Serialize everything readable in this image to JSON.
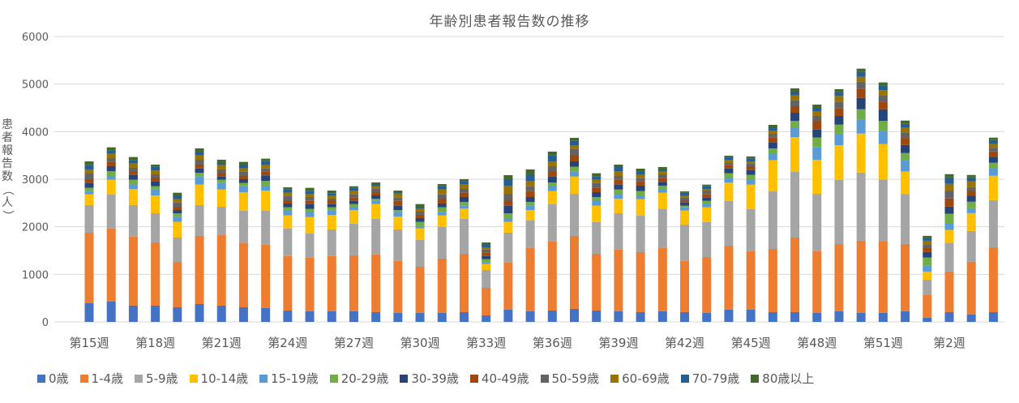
{
  "chart_data": {
    "type": "bar",
    "stacked": true,
    "title": "年齢別患者報告数の推移",
    "xlabel": "",
    "ylabel": "患者報告数（人）",
    "ylim": [
      0,
      6000
    ],
    "yticks": [
      0,
      1000,
      2000,
      3000,
      4000,
      5000,
      6000
    ],
    "grid": true,
    "legend_position": "bottom",
    "categories": [
      "第15週",
      "第16週",
      "第17週",
      "第18週",
      "第19週",
      "第20週",
      "第21週",
      "第22週",
      "第23週",
      "第24週",
      "第25週",
      "第26週",
      "第27週",
      "第28週",
      "第29週",
      "第30週",
      "第31週",
      "第32週",
      "第33週",
      "第34週",
      "第35週",
      "第36週",
      "第37週",
      "第38週",
      "第39週",
      "第40週",
      "第41週",
      "第42週",
      "第43週",
      "第44週",
      "第45週",
      "第46週",
      "第47週",
      "第48週",
      "第49週",
      "第50週",
      "第51週",
      "第52週",
      "第1週",
      "第2週",
      "第3週",
      "第4週"
    ],
    "shown_tick_labels": [
      "第15週",
      "第18週",
      "第21週",
      "第24週",
      "第27週",
      "第30週",
      "第33週",
      "第36週",
      "第39週",
      "第42週",
      "第45週",
      "第48週",
      "第51週",
      "第2週"
    ],
    "series": [
      {
        "name": "0歳",
        "color": "#4472C4",
        "values": [
          398,
          432,
          341,
          341,
          307,
          375,
          341,
          307,
          295,
          239,
          227,
          227,
          227,
          205,
          193,
          193,
          193,
          205,
          136,
          261,
          227,
          239,
          273,
          239,
          227,
          205,
          227,
          205,
          193,
          261,
          261,
          205,
          205,
          193,
          227,
          193,
          193,
          227,
          91,
          205,
          159,
          205
        ]
      },
      {
        "name": "1-4歳",
        "color": "#ED7D31",
        "values": [
          1477,
          1534,
          1454,
          1329,
          954,
          1432,
          1489,
          1352,
          1330,
          1147,
          1125,
          1159,
          1171,
          1215,
          1091,
          966,
          1137,
          1227,
          580,
          989,
          1330,
          1454,
          1534,
          1193,
          1296,
          1261,
          1330,
          1079,
          1171,
          1341,
          1228,
          1329,
          1568,
          1296,
          1409,
          1513,
          1502,
          1411,
          478,
          853,
          1104,
          1365
        ]
      },
      {
        "name": "5-9歳",
        "color": "#A5A5A5",
        "values": [
          580,
          716,
          660,
          614,
          512,
          648,
          590,
          682,
          716,
          580,
          512,
          557,
          670,
          750,
          659,
          568,
          670,
          738,
          375,
          625,
          579,
          784,
          886,
          670,
          761,
          773,
          818,
          761,
          738,
          943,
          886,
          1216,
          1386,
          1204,
          1353,
          1434,
          1297,
          1047,
          318,
          603,
          648,
          990
        ]
      },
      {
        "name": "10-14歳",
        "color": "#FFC000",
        "values": [
          227,
          307,
          340,
          375,
          329,
          431,
          364,
          386,
          420,
          273,
          341,
          307,
          284,
          307,
          273,
          239,
          239,
          216,
          125,
          227,
          216,
          273,
          364,
          341,
          307,
          341,
          341,
          296,
          307,
          387,
          511,
          648,
          727,
          716,
          727,
          819,
          745,
          478,
          171,
          273,
          376,
          512
        ]
      },
      {
        "name": "15-19歳",
        "color": "#5B9BD5",
        "values": [
          68,
          79,
          103,
          125,
          103,
          171,
          136,
          125,
          103,
          113,
          113,
          91,
          68,
          68,
          91,
          45,
          68,
          57,
          34,
          80,
          91,
          114,
          102,
          114,
          102,
          79,
          79,
          68,
          80,
          102,
          114,
          147,
          205,
          261,
          239,
          296,
          285,
          239,
          125,
          137,
          102,
          159
        ]
      },
      {
        "name": "20-29歳",
        "color": "#70AD47",
        "values": [
          68,
          102,
          91,
          68,
          79,
          79,
          69,
          68,
          102,
          57,
          57,
          68,
          57,
          46,
          45,
          91,
          102,
          80,
          68,
          102,
          80,
          68,
          102,
          68,
          91,
          91,
          69,
          34,
          56,
          91,
          91,
          103,
          136,
          205,
          193,
          216,
          205,
          148,
          171,
          204,
          137,
          114
        ]
      },
      {
        "name": "30-39歳",
        "color": "#264478",
        "values": [
          102,
          103,
          102,
          103,
          68,
          91,
          68,
          80,
          114,
          80,
          102,
          68,
          68,
          68,
          91,
          80,
          80,
          102,
          68,
          159,
          102,
          125,
          114,
          102,
          102,
          114,
          79,
          68,
          69,
          102,
          102,
          125,
          171,
          170,
          182,
          239,
          244,
          170,
          114,
          148,
          125,
          125
        ]
      },
      {
        "name": "40-49歳",
        "color": "#9E480E",
        "values": [
          80,
          91,
          79,
          79,
          68,
          80,
          79,
          68,
          79,
          68,
          68,
          80,
          69,
          68,
          102,
          68,
          102,
          91,
          69,
          114,
          125,
          113,
          136,
          91,
          103,
          91,
          80,
          46,
          68,
          68,
          80,
          102,
          136,
          182,
          159,
          193,
          159,
          148,
          91,
          171,
          102,
          114
        ]
      },
      {
        "name": "50-59歳",
        "color": "#636363",
        "values": [
          119,
          79,
          69,
          68,
          91,
          102,
          69,
          91,
          68,
          91,
          80,
          34,
          68,
          80,
          69,
          68,
          91,
          79,
          68,
          136,
          102,
          103,
          125,
          102,
          79,
          68,
          79,
          57,
          79,
          46,
          57,
          80,
          125,
          103,
          136,
          148,
          137,
          114,
          68,
          159,
          80,
          79
        ]
      },
      {
        "name": "60-69歳",
        "color": "#997300",
        "values": [
          86,
          91,
          91,
          80,
          69,
          91,
          90,
          68,
          80,
          68,
          68,
          68,
          79,
          45,
          68,
          57,
          102,
          103,
          45,
          171,
          114,
          102,
          80,
          69,
          102,
          68,
          57,
          34,
          34,
          68,
          45,
          68,
          102,
          102,
          125,
          102,
          102,
          102,
          79,
          148,
          125,
          80
        ]
      },
      {
        "name": "70-79歳",
        "color": "#255E91",
        "values": [
          90,
          68,
          68,
          79,
          79,
          80,
          46,
          80,
          79,
          68,
          57,
          46,
          57,
          46,
          23,
          45,
          68,
          57,
          68,
          136,
          136,
          125,
          91,
          68,
          103,
          79,
          46,
          68,
          57,
          57,
          57,
          68,
          80,
          68,
          80,
          103,
          102,
          80,
          57,
          137,
          80,
          80
        ]
      },
      {
        "name": "80歳以上",
        "color": "#43682B",
        "values": [
          80,
          68,
          68,
          46,
          57,
          68,
          68,
          57,
          46,
          46,
          68,
          56,
          34,
          34,
          56,
          57,
          46,
          45,
          34,
          85,
          103,
          80,
          62,
          68,
          34,
          52,
          51,
          28,
          34,
          28,
          45,
          51,
          68,
          68,
          62,
          68,
          63,
          68,
          46,
          68,
          51,
          51
        ]
      }
    ]
  }
}
